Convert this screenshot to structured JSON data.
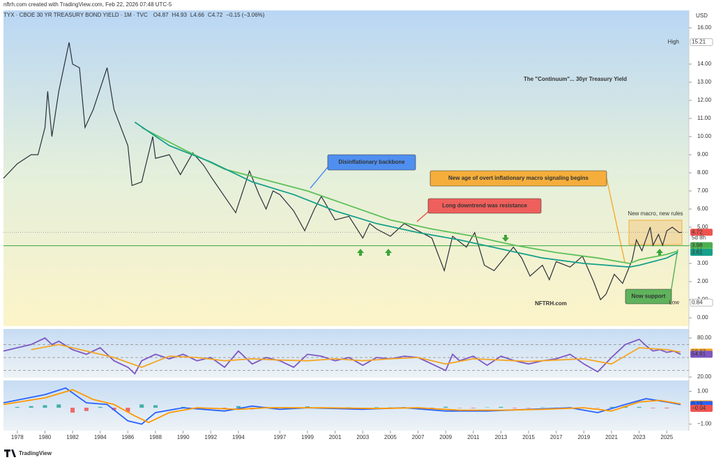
{
  "header": {
    "credit": "nftrh.com created with TradingView.com, Feb 22, 2026 07:48 UTC-5",
    "symbol": "TYX · CBOE 30 YR TREASURY BOND YIELD · 1M · TVC",
    "ohlc": [
      {
        "key": "O",
        "value": "4.87"
      },
      {
        "key": "H",
        "value": "4.93"
      },
      {
        "key": "L",
        "value": "4.66"
      },
      {
        "key": "C",
        "value": "4.72"
      }
    ],
    "change": "−0.15 (−3.06%)",
    "currency": "USD"
  },
  "footer": {
    "brand": "TradingView"
  },
  "annotations": [
    {
      "text": "The \"Continuum\"... 30yr Treasury Yield",
      "color": "#111"
    },
    {
      "text": "Disinflationary backbone",
      "color": "#4f8ff0"
    },
    {
      "text": "New age of overt inflationary macro signaling begins",
      "color": "#f5ae3b"
    },
    {
      "text": "Long downtrend was resistance",
      "color": "#ef5f5b"
    },
    {
      "text": "New macro, new rules",
      "color": "#e04b47"
    },
    {
      "text": "NFTRH.com",
      "color": "#111"
    },
    {
      "text": "Now support",
      "color": "#5fb35c"
    }
  ],
  "chart_data": [
    {
      "type": "line",
      "xlim": [
        1977,
        2026.6
      ],
      "ylim": [
        -0.46,
        16.96
      ],
      "yticks": [
        {
          "value": 0,
          "label": "0.00"
        },
        {
          "value": 1,
          "label": "1.00"
        },
        {
          "value": 2,
          "label": "2.00"
        },
        {
          "value": 3,
          "label": "3.00"
        },
        {
          "value": 4,
          "label": "4.00"
        },
        {
          "value": 5,
          "label": "5.00"
        },
        {
          "value": 6,
          "label": "6.00"
        },
        {
          "value": 7,
          "label": "7.00"
        },
        {
          "value": 8,
          "label": "8.00"
        },
        {
          "value": 9,
          "label": "9.00"
        },
        {
          "value": 10,
          "label": "10.00"
        },
        {
          "value": 11,
          "label": "11.00"
        },
        {
          "value": 12,
          "label": "12.00"
        },
        {
          "value": 13,
          "label": "13.00"
        },
        {
          "value": 14,
          "label": "14.00"
        },
        {
          "value": 16,
          "label": "16.00"
        }
      ],
      "series": [
        {
          "color": "#2a2f3a",
          "x": [
            1977,
            1978,
            1979,
            1979.5,
            1980,
            1980.2,
            1980.5,
            1981,
            1981.75,
            1982,
            1982.5,
            1982.9,
            1983.5,
            1984.5,
            1985,
            1986,
            1986.3,
            1987,
            1987.8,
            1988,
            1989,
            1989.8,
            1990.7,
            1991.5,
            1992,
            1993.8,
            1994.8,
            1995.5,
            1996,
            1996.5,
            1997,
            1998,
            1998.8,
            1999.5,
            2000,
            2001,
            2002,
            2003,
            2003.5,
            2004,
            2005,
            2006,
            2007,
            2008,
            2008.9,
            2009.5,
            2010.5,
            2011.1,
            2011.8,
            2012.5,
            2013.9,
            2014.5,
            2015.1,
            2016,
            2016.5,
            2017,
            2018,
            2018.9,
            2019.7,
            2020.2,
            2020.6,
            2021.2,
            2021.8,
            2022.5,
            2022.8,
            2023.2,
            2023.8,
            2024,
            2024.4,
            2024.7,
            2025,
            2025.4,
            2025.9,
            2026.1
          ],
          "values": [
            7.7,
            8.5,
            9.0,
            9.0,
            10.5,
            12.5,
            10.0,
            12.5,
            15.2,
            14.0,
            13.8,
            10.5,
            11.5,
            13.8,
            11.5,
            9.5,
            7.3,
            7.5,
            10.0,
            8.8,
            9.0,
            7.9,
            9.1,
            8.4,
            7.8,
            5.8,
            8.1,
            6.8,
            6.0,
            7.0,
            6.8,
            5.9,
            4.8,
            6.0,
            6.7,
            5.4,
            5.6,
            4.4,
            5.2,
            4.9,
            4.5,
            5.2,
            4.8,
            4.4,
            2.6,
            4.5,
            3.9,
            4.7,
            2.9,
            2.6,
            3.9,
            3.3,
            2.3,
            2.9,
            2.1,
            3.1,
            2.8,
            3.4,
            2.0,
            1.0,
            1.3,
            2.4,
            1.9,
            3.2,
            4.3,
            3.7,
            5.0,
            4.0,
            4.6,
            4.0,
            4.8,
            5.0,
            4.7,
            4.72
          ]
        },
        {
          "color": "#5cc15a",
          "x": [
            1987,
            1990,
            1993,
            1996,
            1999,
            2002,
            2005,
            2008,
            2011,
            2014,
            2017,
            2020,
            2022.3,
            2023,
            2025,
            2025.8
          ],
          "values": [
            10.5,
            9.3,
            8.2,
            7.6,
            7.0,
            6.2,
            5.4,
            4.9,
            4.5,
            4.0,
            3.6,
            3.3,
            3.0,
            3.2,
            3.5,
            3.68
          ]
        },
        {
          "color": "#16a08a",
          "x": [
            1986.5,
            1989,
            1992,
            1995,
            1998,
            2001,
            2004,
            2007,
            2010,
            2013,
            2016,
            2019,
            2022.3,
            2023,
            2025,
            2025.8
          ],
          "values": [
            10.8,
            9.5,
            8.6,
            7.5,
            6.8,
            5.9,
            5.2,
            4.7,
            4.3,
            3.8,
            3.3,
            3.0,
            2.8,
            2.9,
            3.3,
            3.61
          ]
        }
      ],
      "hlines": [
        {
          "value": 4.72,
          "color": "#999999",
          "style": "dotted"
        },
        {
          "value": 3.98,
          "color": "#4caf50",
          "style": "solid"
        }
      ],
      "badges": [
        {
          "value": 15.21,
          "label": "15.21",
          "tag": "High",
          "color": "#ffffff"
        },
        {
          "value": 4.72,
          "label": "4.72",
          "color": "#ef5350"
        },
        {
          "value": 3.98,
          "label": "3.98",
          "color": "#4caf50"
        },
        {
          "value": 3.68,
          "label": "3.68",
          "color": "#5cc15a"
        },
        {
          "value": 3.61,
          "label": "3.61",
          "color": "#16a08a"
        },
        {
          "value": 0.84,
          "label": "0.84",
          "tag": "Low",
          "color": "#ffffff"
        }
      ],
      "countdown": "5d 8h"
    },
    {
      "type": "line",
      "xlim": [
        1977,
        2026.6
      ],
      "ylim": [
        18.9,
        94
      ],
      "yticks": [
        {
          "value": 80,
          "label": "80.00"
        },
        {
          "value": 20,
          "label": "20.00"
        }
      ],
      "bands": [
        70,
        50,
        30
      ],
      "series": [
        {
          "color": "#7e57c2",
          "x": [
            1977,
            1978,
            1979,
            1980,
            1980.5,
            1981,
            1982,
            1983,
            1984,
            1985,
            1986,
            1986.5,
            1987,
            1988,
            1989,
            1990,
            1991,
            1992,
            1993,
            1994,
            1995,
            1996,
            1997,
            1998,
            1999,
            2000,
            2001,
            2002,
            2003,
            2004,
            2005,
            2006,
            2007,
            2008,
            2009,
            2009.5,
            2010,
            2011,
            2012,
            2013,
            2014,
            2015,
            2016,
            2017,
            2018,
            2019,
            2020,
            2021,
            2022,
            2023,
            2023.5,
            2024,
            2024.5,
            2025,
            2025.5,
            2026
          ],
          "values": [
            60,
            65,
            70,
            80,
            70,
            75,
            62,
            55,
            65,
            45,
            35,
            25,
            45,
            55,
            48,
            55,
            45,
            50,
            35,
            60,
            40,
            50,
            45,
            35,
            55,
            52,
            45,
            50,
            38,
            50,
            48,
            52,
            50,
            40,
            30,
            55,
            45,
            52,
            38,
            52,
            45,
            40,
            45,
            48,
            55,
            40,
            28,
            50,
            70,
            78,
            68,
            60,
            62,
            58,
            60,
            54.91
          ]
        },
        {
          "color": "#f5a623",
          "x": [
            1979,
            1981,
            1983,
            1985,
            1987,
            1989,
            1991,
            1993,
            1995,
            1997,
            1999,
            2001,
            2003,
            2005,
            2007,
            2009,
            2011,
            2013,
            2015,
            2017,
            2019,
            2021,
            2023,
            2025,
            2026
          ],
          "values": [
            62,
            70,
            60,
            50,
            35,
            52,
            50,
            45,
            48,
            46,
            45,
            48,
            45,
            48,
            50,
            40,
            48,
            46,
            44,
            46,
            48,
            40,
            65,
            62,
            58.37
          ]
        }
      ],
      "badges": [
        {
          "value": 58.37,
          "label": "58.37",
          "color": "#f5a623"
        },
        {
          "value": 54.91,
          "label": "54.91",
          "color": "#7e57c2"
        }
      ]
    },
    {
      "type": "macd",
      "xlim": [
        1977,
        2026.6
      ],
      "ylim": [
        -1.4,
        1.66
      ],
      "yticks": [
        {
          "value": 1,
          "label": "1.00"
        },
        {
          "value": -1,
          "label": "−1.00"
        }
      ],
      "xticks": [
        1978,
        1980,
        1982,
        1984,
        1986,
        1988,
        1990,
        1992,
        1994,
        1997,
        1999,
        2001,
        2003,
        2005,
        2007,
        2009,
        2011,
        2013,
        2015,
        2017,
        2019,
        2021,
        2023,
        2025
      ],
      "series": [
        {
          "color": "#2962ff",
          "x": [
            1977,
            1980,
            1981.5,
            1983,
            1984.5,
            1986,
            1987,
            1988,
            1990,
            1993,
            1995,
            1997,
            1999,
            2003,
            2006,
            2009,
            2012,
            2015,
            2018,
            2020,
            2022,
            2023.5,
            2025,
            2026
          ],
          "values": [
            0.3,
            0.8,
            1.2,
            0.3,
            0.2,
            -0.8,
            -1.0,
            -0.3,
            0,
            -0.2,
            0.1,
            -0.1,
            0,
            -0.1,
            0,
            -0.2,
            -0.2,
            -0.1,
            0,
            -0.3,
            0.2,
            0.55,
            0.35,
            0.19
          ]
        },
        {
          "color": "#ff9800",
          "x": [
            1977,
            1980,
            1982,
            1983.5,
            1985,
            1986.5,
            1987.5,
            1989,
            1991,
            1994,
            1996,
            1998,
            2000,
            2004,
            2007,
            2010,
            2013,
            2016,
            2019,
            2021,
            2023,
            2024.5,
            2026
          ],
          "values": [
            0.2,
            0.6,
            1.1,
            0.5,
            0.2,
            -0.5,
            -0.9,
            -0.3,
            0,
            -0.1,
            0,
            0,
            0,
            -0.05,
            0,
            -0.15,
            -0.15,
            -0.1,
            0,
            -0.2,
            0.35,
            0.45,
            0.23
          ]
        }
      ],
      "histogram": {
        "x": [
          1978,
          1979,
          1980,
          1981,
          1982,
          1983,
          1984,
          1985,
          1986,
          1987,
          1988,
          1989,
          1990,
          1991,
          1992,
          1993,
          1994,
          1995,
          1996,
          1997,
          1998,
          1999,
          2000,
          2001,
          2002,
          2003,
          2004,
          2005,
          2006,
          2007,
          2008,
          2009,
          2010,
          2011,
          2012,
          2013,
          2014,
          2015,
          2016,
          2017,
          2018,
          2019,
          2020,
          2021,
          2022,
          2023,
          2024,
          2025
        ],
        "values": [
          0.05,
          0.1,
          0.15,
          0.2,
          -0.3,
          -0.2,
          0.05,
          -0.15,
          -0.25,
          0.2,
          0.15,
          0.0,
          0.05,
          -0.05,
          -0.05,
          -0.08,
          0.1,
          -0.1,
          0.05,
          0.03,
          -0.08,
          0.08,
          0.02,
          -0.05,
          0.02,
          -0.05,
          0.03,
          0.02,
          0.03,
          -0.02,
          -0.05,
          0.06,
          -0.02,
          -0.03,
          0.02,
          0.05,
          -0.03,
          -0.02,
          0.02,
          0.01,
          0.03,
          -0.04,
          -0.02,
          0.05,
          0.1,
          0.05,
          -0.03,
          -0.04
        ],
        "up_color": "#26a69a",
        "down_color": "#ef5350"
      },
      "badges": [
        {
          "value": 0.23,
          "label": "0.23",
          "color": "#ff9800"
        },
        {
          "value": 0.19,
          "label": "0.19",
          "color": "#2962ff"
        },
        {
          "value": -0.04,
          "label": "−0.04",
          "color": "#ef5350"
        }
      ]
    }
  ]
}
